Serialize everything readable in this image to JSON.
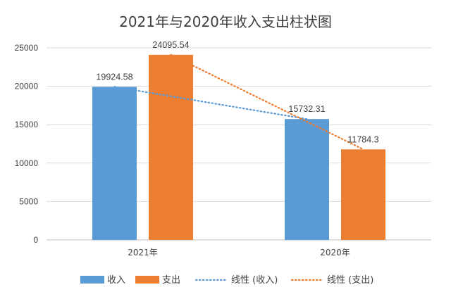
{
  "chart_data": {
    "type": "bar",
    "title": "2021年与2020年收入支出柱状图",
    "categories": [
      "2021年",
      "2020年"
    ],
    "series": [
      {
        "name": "收入",
        "values": [
          19924.58,
          15732.31
        ],
        "labels": [
          "19924.58",
          "15732.31"
        ],
        "color": "#5B9BD5"
      },
      {
        "name": "支出",
        "values": [
          24095.54,
          11784.3
        ],
        "labels": [
          "24095.54",
          "11784.3"
        ],
        "color": "#ED7D31"
      }
    ],
    "trendlines": [
      {
        "name": "线性 (收入)",
        "series_index": 0,
        "type": "linear",
        "style": "dotted",
        "color": "#5B9BD5"
      },
      {
        "name": "线性 (支出)",
        "series_index": 1,
        "type": "linear",
        "style": "dotted",
        "color": "#ED7D31"
      }
    ],
    "ylim": [
      0,
      25000
    ],
    "yticks": [
      "0",
      "5000",
      "10000",
      "15000",
      "20000",
      "25000"
    ],
    "xlabel": "",
    "ylabel": "",
    "grid": true,
    "legend": "bottom"
  }
}
